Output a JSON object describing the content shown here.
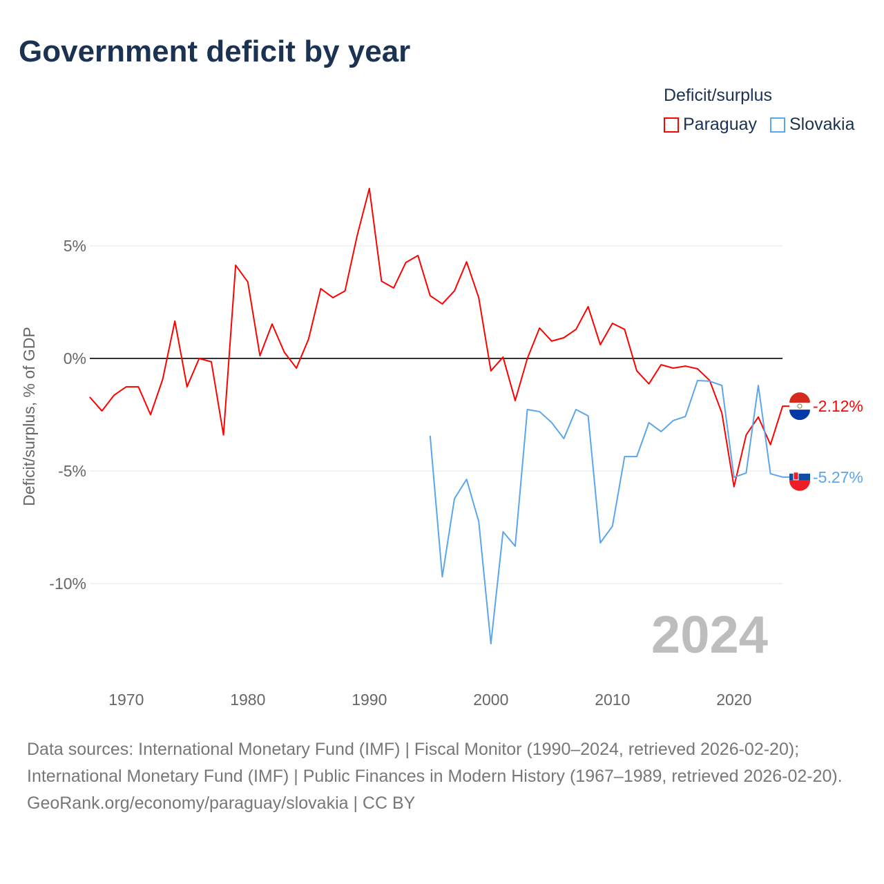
{
  "title": "Government deficit by year",
  "legend": {
    "title": "Deficit/surplus",
    "items": [
      {
        "name": "Paraguay",
        "color": "#ff0000"
      },
      {
        "name": "Slovakia",
        "color": "#5aa5ee"
      }
    ]
  },
  "year_label": "2024",
  "source_lines": [
    "Data sources: International Monetary Fund (IMF) | Fiscal Monitor (1990–2024, retrieved 2026-02-20); International Monetary Fund (IMF) | Public Finances in Modern History (1967–1989, retrieved 2026-02-20).",
    "GeoRank.org/economy/paraguay/slovakia | CC BY"
  ],
  "chart_data": {
    "type": "line",
    "title": "Government deficit by year",
    "xlabel": "",
    "ylabel": "Deficit/surplus, % of GDP",
    "xlim": [
      1967,
      2024
    ],
    "ylim": [
      -13.5,
      9
    ],
    "x_ticks": [
      1970,
      1980,
      1990,
      2000,
      2010,
      2020
    ],
    "y_ticks": [
      {
        "v": 5,
        "label": "5%"
      },
      {
        "v": 0,
        "label": "0%"
      },
      {
        "v": -5,
        "label": "-5%"
      },
      {
        "v": -10,
        "label": "-10%"
      }
    ],
    "series": [
      {
        "name": "Paraguay",
        "color": "#ff0000",
        "start": 1967,
        "end_label": "-2.12%",
        "values": [
          -1.72,
          -2.33,
          -1.63,
          -1.26,
          -1.26,
          -2.5,
          -0.92,
          1.66,
          -1.26,
          0,
          -0.15,
          -3.4,
          4.14,
          3.4,
          0.12,
          1.53,
          0.28,
          -0.43,
          0.86,
          3.1,
          2.7,
          3.0,
          5.46,
          7.55,
          3.43,
          3.13,
          4.26,
          4.57,
          2.79,
          2.42,
          3.0,
          4.29,
          2.7,
          -0.55,
          0.06,
          -1.87,
          0,
          1.35,
          0.77,
          0.92,
          1.29,
          2.3,
          0.61,
          1.56,
          1.29,
          -0.55,
          -1.13,
          -0.28,
          -0.43,
          -0.34,
          -0.46,
          -0.98,
          -2.42,
          -5.7,
          -3.4,
          -2.6,
          -3.83,
          -2.12
        ]
      },
      {
        "name": "Slovakia",
        "color": "#5aa5ee",
        "start": 1995,
        "end_label": "-5.27%",
        "values": [
          -3.44,
          -9.7,
          -6.23,
          -5.37,
          -7.24,
          -12.67,
          -7.7,
          -8.34,
          -2.27,
          -2.36,
          -2.85,
          -3.56,
          -2.27,
          -2.55,
          -8.19,
          -7.45,
          -4.36,
          -4.36,
          -2.85,
          -3.25,
          -2.76,
          -2.58,
          -0.98,
          -1.01,
          -1.2,
          -5.28,
          -5.09,
          -1.2,
          -5.12,
          -5.27
        ]
      }
    ]
  }
}
